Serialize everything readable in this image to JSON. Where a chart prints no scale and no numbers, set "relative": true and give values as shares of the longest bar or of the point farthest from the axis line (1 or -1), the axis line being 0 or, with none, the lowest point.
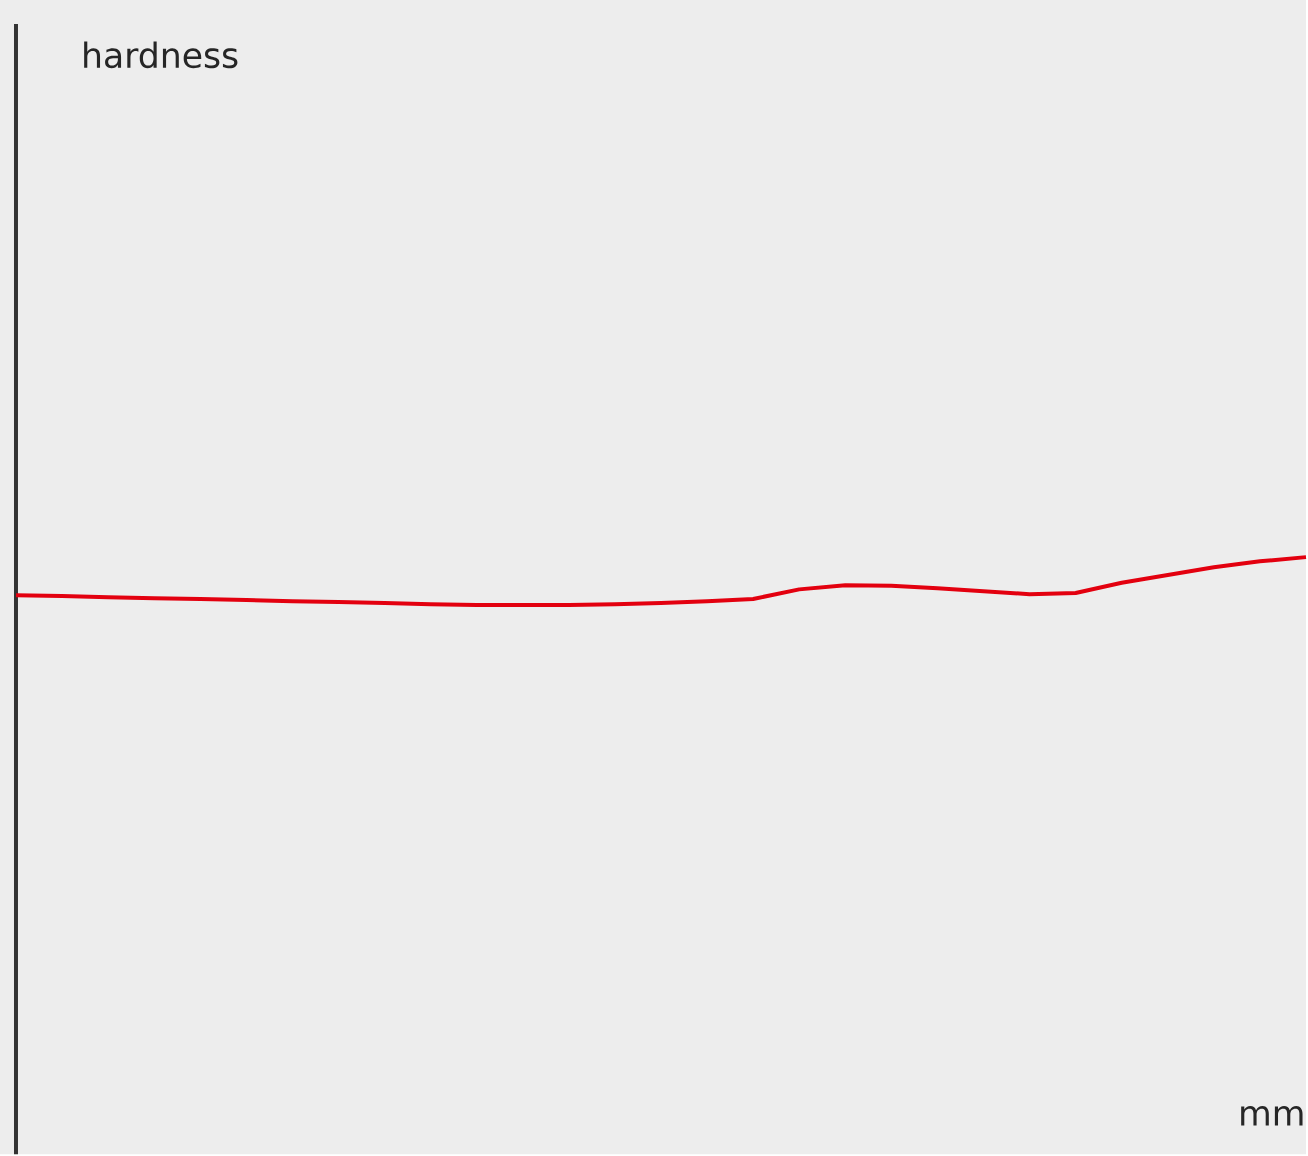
{
  "chart_data": {
    "type": "line",
    "relative": true,
    "xlabel": "mm",
    "annotations": [
      "hardness"
    ],
    "categories": [
      null,
      null,
      null,
      null,
      null,
      null,
      null,
      null,
      null,
      null,
      null,
      null,
      null,
      null,
      null,
      null,
      null,
      null,
      null,
      null,
      null,
      null,
      null,
      null,
      null,
      null,
      null,
      null,
      null
    ],
    "series": [
      {
        "color": "#e3000f",
        "values": [
          0.936,
          0.935,
          0.933,
          0.931,
          0.93,
          0.928,
          0.926,
          0.925,
          0.923,
          0.921,
          0.92,
          0.92,
          0.92,
          0.921,
          0.923,
          0.926,
          0.93,
          0.946,
          0.953,
          0.952,
          0.948,
          0.943,
          0.938,
          0.94,
          0.957,
          0.97,
          0.983,
          0.993,
          1.0
        ]
      }
    ]
  }
}
